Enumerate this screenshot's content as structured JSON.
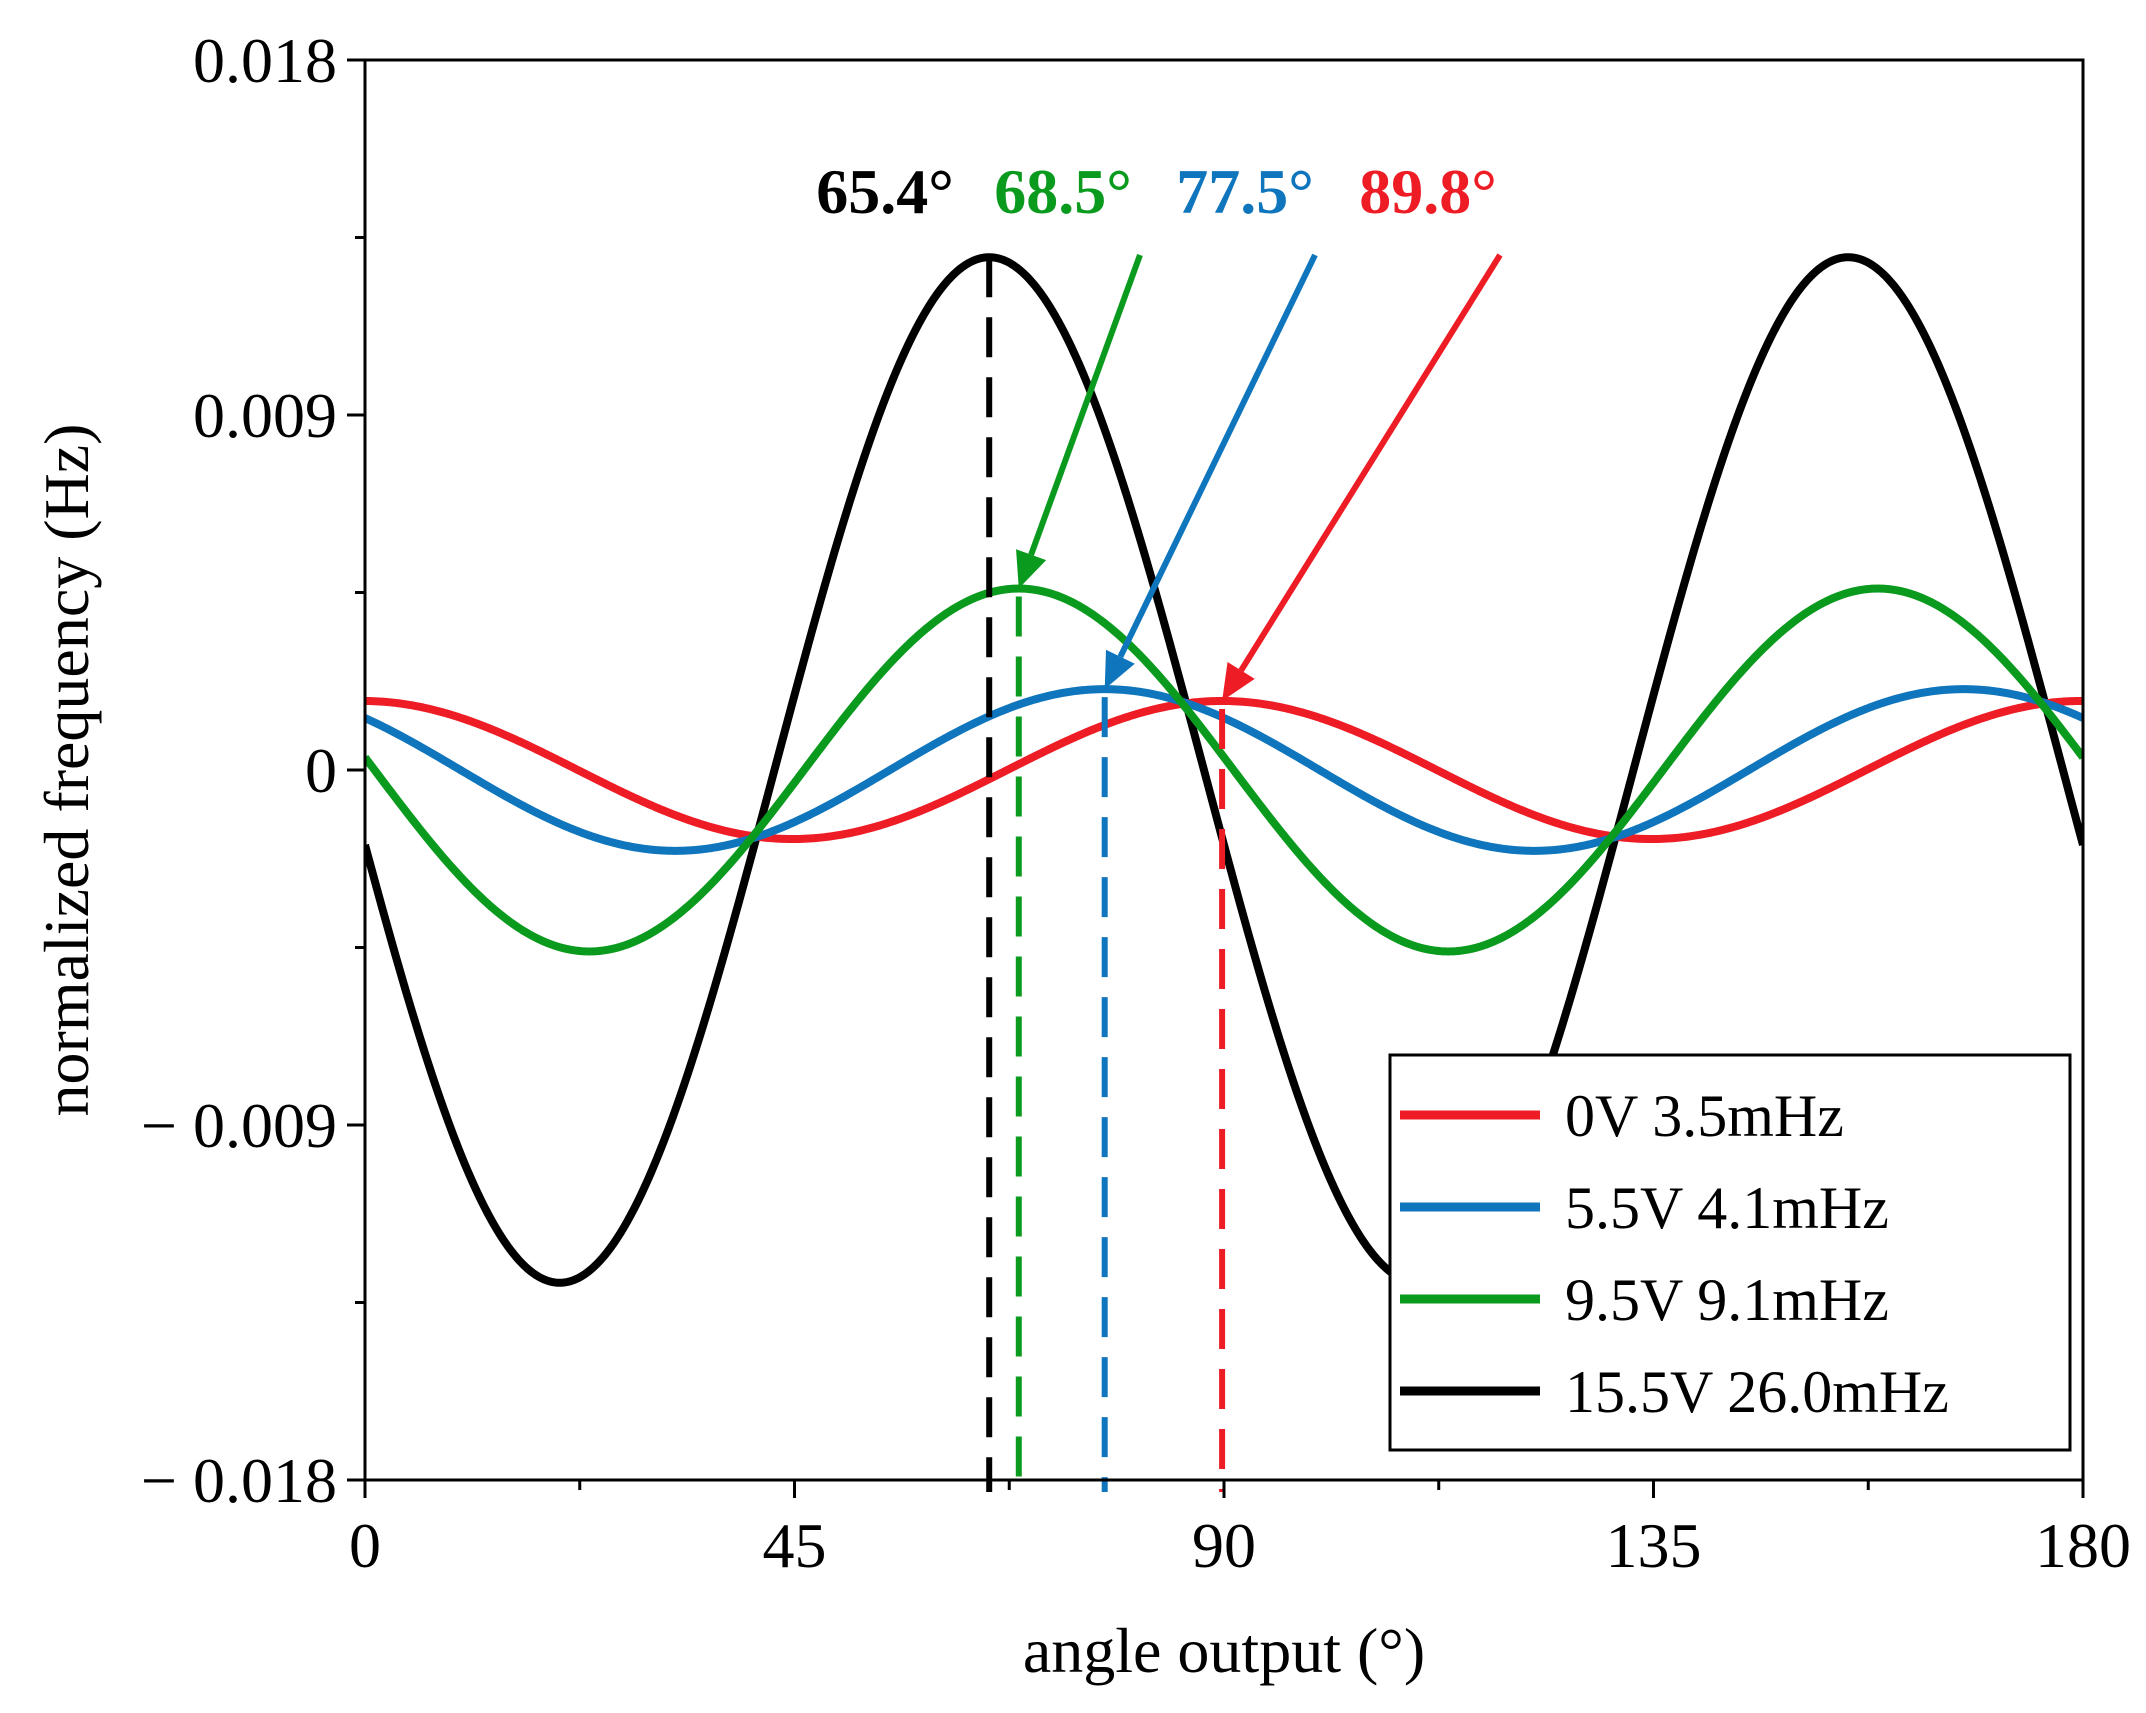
{
  "chart_data": {
    "type": "line",
    "xlabel": "angle output (°)",
    "ylabel": "normalized frequency (Hz)",
    "xlim": [
      0,
      180
    ],
    "ylim": [
      -0.018,
      0.018
    ],
    "xticks": [
      0,
      45,
      90,
      135,
      180
    ],
    "xtick_labels": [
      "0",
      "45",
      "90",
      "135",
      "180"
    ],
    "yticks": [
      -0.018,
      -0.009,
      0,
      0.009,
      0.018
    ],
    "ytick_labels": [
      "− 0.018",
      "− 0.009",
      "0",
      "0.009",
      "0.018"
    ],
    "grid": false,
    "legend_position": "bottom-right",
    "series": [
      {
        "name": "0V 3.5mHz",
        "color": "#ee1c25",
        "amplitude": 0.00175,
        "peak_x": 89.8,
        "period": 90
      },
      {
        "name": "5.5V 4.1mHz",
        "color": "#0f75bc",
        "amplitude": 0.00205,
        "peak_x": 77.5,
        "period": 90
      },
      {
        "name": "9.5V 9.1mHz",
        "color": "#0a9a1e",
        "amplitude": 0.0046,
        "peak_x": 68.5,
        "period": 90
      },
      {
        "name": "15.5V 26.0mHz",
        "color": "#000000",
        "amplitude": 0.013,
        "peak_x": 65.4,
        "period": 90
      }
    ],
    "annotations": [
      {
        "text": "65.4°",
        "color": "#000000",
        "x": 65.4
      },
      {
        "text": "68.5°",
        "color": "#0a9a1e",
        "x": 68.5
      },
      {
        "text": "77.5°",
        "color": "#0f75bc",
        "x": 77.5
      },
      {
        "text": "89.8°",
        "color": "#ee1c25",
        "x": 89.8
      }
    ]
  }
}
